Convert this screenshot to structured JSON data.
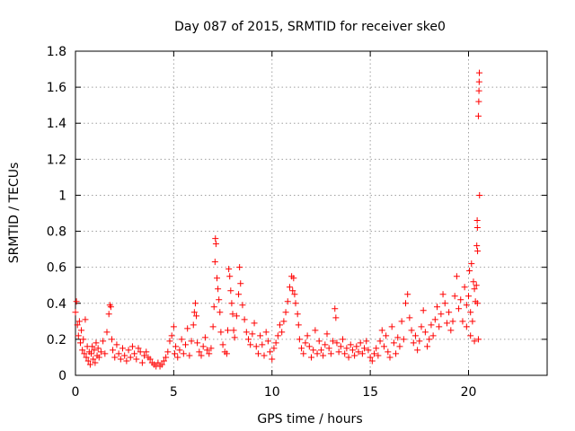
{
  "chart_data": {
    "type": "scatter",
    "title": "Day 087 of 2015, SRMTID for receiver ske0",
    "xlabel": "GPS time / hours",
    "ylabel": "SRMTID / TECUs",
    "xlim": [
      0,
      24
    ],
    "ylim": [
      0,
      1.8
    ],
    "xticks": [
      0,
      5,
      10,
      15,
      20
    ],
    "xtick_labels": [
      "0",
      "5",
      "10",
      "15",
      "20"
    ],
    "yticks": [
      0,
      0.2,
      0.4,
      0.6,
      0.8,
      1,
      1.2,
      1.4,
      1.6,
      1.8
    ],
    "ytick_labels": [
      "0",
      "0.2",
      "0.4",
      "0.6",
      "0.8",
      "1",
      "1.2",
      "1.4",
      "1.6",
      "1.8"
    ],
    "grid": true,
    "marker": "plus",
    "series": [
      {
        "name": "ske0",
        "color": "#ff0000",
        "points": [
          [
            0.0,
            0.35
          ],
          [
            0.05,
            0.41
          ],
          [
            0.1,
            0.28
          ],
          [
            0.15,
            0.22
          ],
          [
            0.2,
            0.3
          ],
          [
            0.25,
            0.18
          ],
          [
            0.3,
            0.25
          ],
          [
            0.35,
            0.14
          ],
          [
            0.4,
            0.2
          ],
          [
            0.45,
            0.12
          ],
          [
            0.5,
            0.31
          ],
          [
            0.55,
            0.1
          ],
          [
            0.6,
            0.16
          ],
          [
            0.65,
            0.08
          ],
          [
            0.7,
            0.13
          ],
          [
            0.75,
            0.06
          ],
          [
            0.8,
            0.12
          ],
          [
            0.85,
            0.16
          ],
          [
            0.9,
            0.09
          ],
          [
            0.95,
            0.14
          ],
          [
            1.0,
            0.07
          ],
          [
            1.05,
            0.18
          ],
          [
            1.1,
            0.11
          ],
          [
            1.15,
            0.15
          ],
          [
            1.2,
            0.1
          ],
          [
            1.3,
            0.13
          ],
          [
            1.4,
            0.19
          ],
          [
            1.5,
            0.12
          ],
          [
            1.6,
            0.24
          ],
          [
            1.7,
            0.34
          ],
          [
            1.75,
            0.39
          ],
          [
            1.8,
            0.38
          ],
          [
            1.85,
            0.2
          ],
          [
            1.9,
            0.14
          ],
          [
            2.0,
            0.1
          ],
          [
            2.1,
            0.17
          ],
          [
            2.2,
            0.12
          ],
          [
            2.3,
            0.09
          ],
          [
            2.4,
            0.15
          ],
          [
            2.5,
            0.11
          ],
          [
            2.6,
            0.08
          ],
          [
            2.7,
            0.14
          ],
          [
            2.8,
            0.1
          ],
          [
            2.9,
            0.16
          ],
          [
            3.0,
            0.12
          ],
          [
            3.1,
            0.09
          ],
          [
            3.2,
            0.15
          ],
          [
            3.3,
            0.13
          ],
          [
            3.4,
            0.07
          ],
          [
            3.5,
            0.11
          ],
          [
            3.6,
            0.13
          ],
          [
            3.7,
            0.1
          ],
          [
            3.8,
            0.09
          ],
          [
            3.9,
            0.07
          ],
          [
            4.0,
            0.06
          ],
          [
            4.1,
            0.05
          ],
          [
            4.2,
            0.07
          ],
          [
            4.3,
            0.05
          ],
          [
            4.4,
            0.06
          ],
          [
            4.5,
            0.08
          ],
          [
            4.6,
            0.1
          ],
          [
            4.7,
            0.13
          ],
          [
            4.8,
            0.19
          ],
          [
            4.9,
            0.22
          ],
          [
            5.0,
            0.27
          ],
          [
            5.05,
            0.12
          ],
          [
            5.1,
            0.16
          ],
          [
            5.2,
            0.1
          ],
          [
            5.3,
            0.14
          ],
          [
            5.4,
            0.2
          ],
          [
            5.5,
            0.12
          ],
          [
            5.6,
            0.17
          ],
          [
            5.7,
            0.26
          ],
          [
            5.8,
            0.11
          ],
          [
            5.9,
            0.19
          ],
          [
            6.0,
            0.28
          ],
          [
            6.05,
            0.35
          ],
          [
            6.1,
            0.4
          ],
          [
            6.15,
            0.33
          ],
          [
            6.2,
            0.18
          ],
          [
            6.3,
            0.13
          ],
          [
            6.4,
            0.11
          ],
          [
            6.5,
            0.16
          ],
          [
            6.6,
            0.21
          ],
          [
            6.7,
            0.14
          ],
          [
            6.8,
            0.12
          ],
          [
            6.9,
            0.15
          ],
          [
            7.0,
            0.27
          ],
          [
            7.05,
            0.38
          ],
          [
            7.1,
            0.63
          ],
          [
            7.12,
            0.76
          ],
          [
            7.15,
            0.73
          ],
          [
            7.2,
            0.54
          ],
          [
            7.25,
            0.48
          ],
          [
            7.3,
            0.42
          ],
          [
            7.35,
            0.35
          ],
          [
            7.4,
            0.24
          ],
          [
            7.5,
            0.17
          ],
          [
            7.6,
            0.13
          ],
          [
            7.7,
            0.12
          ],
          [
            7.75,
            0.25
          ],
          [
            7.8,
            0.59
          ],
          [
            7.85,
            0.55
          ],
          [
            7.9,
            0.47
          ],
          [
            7.95,
            0.4
          ],
          [
            8.0,
            0.34
          ],
          [
            8.05,
            0.25
          ],
          [
            8.1,
            0.21
          ],
          [
            8.2,
            0.33
          ],
          [
            8.3,
            0.45
          ],
          [
            8.35,
            0.6
          ],
          [
            8.4,
            0.51
          ],
          [
            8.5,
            0.39
          ],
          [
            8.6,
            0.31
          ],
          [
            8.7,
            0.24
          ],
          [
            8.8,
            0.2
          ],
          [
            8.9,
            0.17
          ],
          [
            9.0,
            0.23
          ],
          [
            9.1,
            0.29
          ],
          [
            9.2,
            0.16
          ],
          [
            9.3,
            0.12
          ],
          [
            9.4,
            0.22
          ],
          [
            9.5,
            0.17
          ],
          [
            9.6,
            0.11
          ],
          [
            9.7,
            0.24
          ],
          [
            9.8,
            0.19
          ],
          [
            9.9,
            0.13
          ],
          [
            10.0,
            0.09
          ],
          [
            10.1,
            0.15
          ],
          [
            10.2,
            0.18
          ],
          [
            10.3,
            0.22
          ],
          [
            10.4,
            0.28
          ],
          [
            10.5,
            0.24
          ],
          [
            10.6,
            0.3
          ],
          [
            10.7,
            0.35
          ],
          [
            10.8,
            0.41
          ],
          [
            10.9,
            0.49
          ],
          [
            11.0,
            0.55
          ],
          [
            11.05,
            0.47
          ],
          [
            11.1,
            0.54
          ],
          [
            11.15,
            0.45
          ],
          [
            11.2,
            0.4
          ],
          [
            11.3,
            0.34
          ],
          [
            11.35,
            0.28
          ],
          [
            11.4,
            0.2
          ],
          [
            11.5,
            0.15
          ],
          [
            11.6,
            0.12
          ],
          [
            11.7,
            0.18
          ],
          [
            11.8,
            0.22
          ],
          [
            11.9,
            0.16
          ],
          [
            12.0,
            0.1
          ],
          [
            12.1,
            0.14
          ],
          [
            12.2,
            0.25
          ],
          [
            12.3,
            0.12
          ],
          [
            12.4,
            0.19
          ],
          [
            12.5,
            0.14
          ],
          [
            12.6,
            0.11
          ],
          [
            12.7,
            0.17
          ],
          [
            12.8,
            0.23
          ],
          [
            12.9,
            0.15
          ],
          [
            13.0,
            0.12
          ],
          [
            13.1,
            0.19
          ],
          [
            13.2,
            0.37
          ],
          [
            13.25,
            0.32
          ],
          [
            13.3,
            0.18
          ],
          [
            13.4,
            0.13
          ],
          [
            13.5,
            0.16
          ],
          [
            13.6,
            0.2
          ],
          [
            13.7,
            0.12
          ],
          [
            13.8,
            0.15
          ],
          [
            13.9,
            0.1
          ],
          [
            14.0,
            0.17
          ],
          [
            14.1,
            0.14
          ],
          [
            14.2,
            0.11
          ],
          [
            14.3,
            0.16
          ],
          [
            14.4,
            0.13
          ],
          [
            14.5,
            0.18
          ],
          [
            14.6,
            0.12
          ],
          [
            14.7,
            0.15
          ],
          [
            14.8,
            0.19
          ],
          [
            14.9,
            0.14
          ],
          [
            15.0,
            0.1
          ],
          [
            15.1,
            0.08
          ],
          [
            15.2,
            0.12
          ],
          [
            15.3,
            0.15
          ],
          [
            15.4,
            0.11
          ],
          [
            15.5,
            0.19
          ],
          [
            15.6,
            0.25
          ],
          [
            15.7,
            0.16
          ],
          [
            15.8,
            0.22
          ],
          [
            15.9,
            0.13
          ],
          [
            16.0,
            0.1
          ],
          [
            16.1,
            0.27
          ],
          [
            16.2,
            0.18
          ],
          [
            16.3,
            0.12
          ],
          [
            16.4,
            0.21
          ],
          [
            16.5,
            0.16
          ],
          [
            16.6,
            0.3
          ],
          [
            16.7,
            0.2
          ],
          [
            16.8,
            0.4
          ],
          [
            16.9,
            0.45
          ],
          [
            17.0,
            0.32
          ],
          [
            17.1,
            0.25
          ],
          [
            17.2,
            0.18
          ],
          [
            17.3,
            0.22
          ],
          [
            17.4,
            0.14
          ],
          [
            17.5,
            0.19
          ],
          [
            17.6,
            0.27
          ],
          [
            17.7,
            0.36
          ],
          [
            17.8,
            0.24
          ],
          [
            17.9,
            0.16
          ],
          [
            18.0,
            0.2
          ],
          [
            18.1,
            0.28
          ],
          [
            18.2,
            0.22
          ],
          [
            18.3,
            0.31
          ],
          [
            18.4,
            0.38
          ],
          [
            18.5,
            0.27
          ],
          [
            18.6,
            0.34
          ],
          [
            18.7,
            0.45
          ],
          [
            18.8,
            0.4
          ],
          [
            18.9,
            0.29
          ],
          [
            19.0,
            0.35
          ],
          [
            19.1,
            0.25
          ],
          [
            19.2,
            0.3
          ],
          [
            19.3,
            0.44
          ],
          [
            19.4,
            0.55
          ],
          [
            19.5,
            0.37
          ],
          [
            19.6,
            0.42
          ],
          [
            19.7,
            0.3
          ],
          [
            19.8,
            0.49
          ],
          [
            19.9,
            0.39
          ],
          [
            20.0,
            0.44
          ],
          [
            20.05,
            0.58
          ],
          [
            20.1,
            0.35
          ],
          [
            20.15,
            0.62
          ],
          [
            20.2,
            0.3
          ],
          [
            20.25,
            0.52
          ],
          [
            20.3,
            0.48
          ],
          [
            20.35,
            0.41
          ],
          [
            20.4,
            0.5
          ],
          [
            20.42,
            0.72
          ],
          [
            20.44,
            0.86
          ],
          [
            20.45,
            0.82
          ],
          [
            20.46,
            0.69
          ],
          [
            20.5,
            1.44
          ],
          [
            20.52,
            1.52
          ],
          [
            20.53,
            1.58
          ],
          [
            20.54,
            1.63
          ],
          [
            20.55,
            1.68
          ],
          [
            20.56,
            1.0
          ],
          [
            20.5,
            0.2
          ],
          [
            20.45,
            0.4
          ],
          [
            20.3,
            0.19
          ],
          [
            20.1,
            0.22
          ],
          [
            19.9,
            0.27
          ]
        ]
      }
    ]
  }
}
